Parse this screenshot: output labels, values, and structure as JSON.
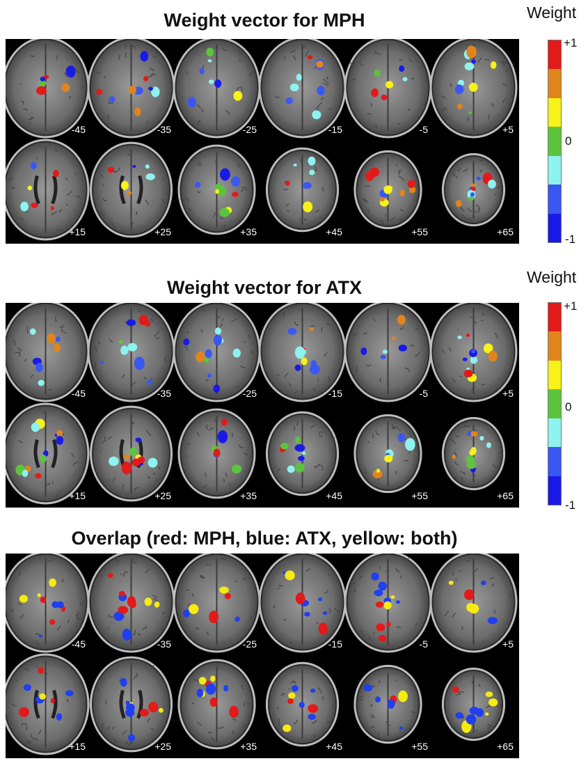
{
  "panels": [
    {
      "title": "Weight vector for MPH",
      "scheme": "weight",
      "top_row": [
        "-45",
        "-35",
        "-25",
        "-15",
        "-5",
        "+5"
      ],
      "bottom_row": [
        "+15",
        "+25",
        "+35",
        "+45",
        "+55",
        "+65"
      ]
    },
    {
      "title": "Weight vector for ATX",
      "scheme": "weight",
      "top_row": [
        "-45",
        "-35",
        "-25",
        "-15",
        "-5",
        "+5"
      ],
      "bottom_row": [
        "+15",
        "+25",
        "+35",
        "+45",
        "+55",
        "+65"
      ]
    },
    {
      "title": "Overlap (red: MPH, blue: ATX, yellow: both)",
      "scheme": "overlap",
      "top_row": [
        "-45",
        "-35",
        "-25",
        "-15",
        "-5",
        "+5"
      ],
      "bottom_row": [
        "+15",
        "+25",
        "+35",
        "+45",
        "+55",
        "+65"
      ]
    }
  ],
  "colorbar": {
    "title": "Weight",
    "max_label": "+1",
    "mid_label": "0",
    "min_label": "-1",
    "colors": [
      "#e21a1a",
      "#e0851e",
      "#f6f21a",
      "#5cc43c",
      "#8ef2ef",
      "#3b57f2",
      "#1a1ae6"
    ]
  },
  "overlap_colors": {
    "mph": "#e21a1a",
    "atx": "#1f3ff0",
    "both": "#f6ea12"
  }
}
